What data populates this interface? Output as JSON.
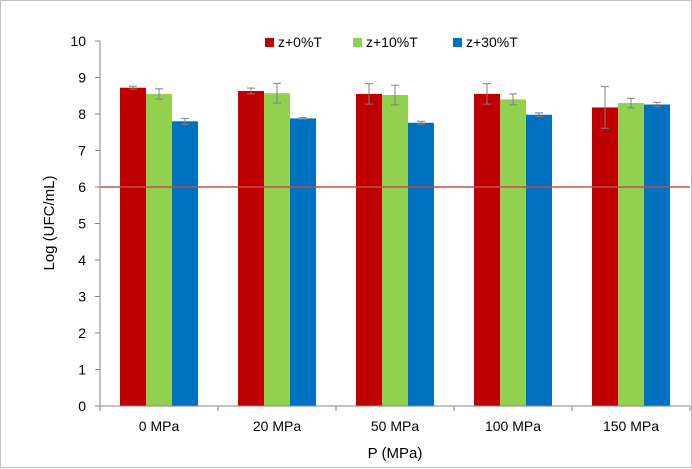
{
  "chart_data": {
    "type": "bar",
    "title": "",
    "xlabel": "P (MPa)",
    "ylabel": "Log (UFC/mL)",
    "ylim": [
      0,
      10
    ],
    "yticks": [
      0,
      1,
      2,
      3,
      4,
      5,
      6,
      7,
      8,
      9,
      10
    ],
    "grid": false,
    "legend_position": "top",
    "categories": [
      "0 MPa",
      "20 MPa",
      "50 MPa",
      "100 MPa",
      "150 MPa"
    ],
    "series": [
      {
        "name": "z+0%T",
        "color": "#c00000",
        "values": [
          8.72,
          8.63,
          8.55,
          8.55,
          8.18
        ],
        "errors": [
          0.04,
          0.08,
          0.28,
          0.28,
          0.57
        ]
      },
      {
        "name": "z+10%T",
        "color": "#92d050",
        "values": [
          8.55,
          8.57,
          8.52,
          8.4,
          8.3
        ],
        "errors": [
          0.14,
          0.27,
          0.27,
          0.15,
          0.13
        ]
      },
      {
        "name": "z+30%T",
        "color": "#0070c0",
        "values": [
          7.8,
          7.88,
          7.76,
          7.98,
          8.26
        ],
        "errors": [
          0.08,
          0.02,
          0.04,
          0.05,
          0.06
        ]
      }
    ],
    "reference_line": {
      "value": 6,
      "color": "#c0504d"
    }
  }
}
